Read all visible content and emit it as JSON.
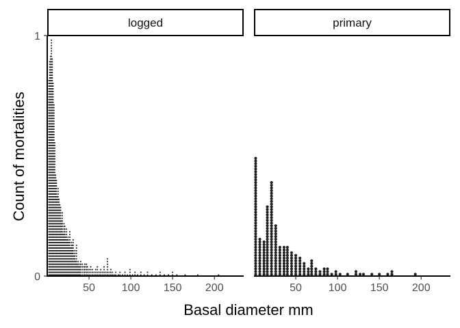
{
  "chart_data": {
    "type": "dotplot",
    "xlabel": "Basal diameter mm",
    "ylabel": "Count of mortalities",
    "xlim": [
      0,
      235
    ],
    "ylim": [
      0,
      1
    ],
    "x_ticks": [
      50,
      100,
      150,
      200
    ],
    "y_ticks": [
      0,
      1
    ],
    "grid": false,
    "legend": "none",
    "panels": [
      {
        "label": "logged",
        "stacks": [
          {
            "x": 2,
            "count": 73
          },
          {
            "x": 3,
            "count": 80
          },
          {
            "x": 4,
            "count": 82
          },
          {
            "x": 5,
            "count": 88
          },
          {
            "x": 6,
            "count": 81
          },
          {
            "x": 7,
            "count": 72
          },
          {
            "x": 8,
            "count": 64
          },
          {
            "x": 9,
            "count": 50
          },
          {
            "x": 10,
            "count": 38
          },
          {
            "x": 11,
            "count": 36
          },
          {
            "x": 12,
            "count": 30
          },
          {
            "x": 13,
            "count": 33
          },
          {
            "x": 14,
            "count": 29
          },
          {
            "x": 15,
            "count": 27
          },
          {
            "x": 16,
            "count": 26
          },
          {
            "x": 17,
            "count": 21
          },
          {
            "x": 18,
            "count": 24
          },
          {
            "x": 19,
            "count": 16
          },
          {
            "x": 20,
            "count": 20
          },
          {
            "x": 21,
            "count": 19
          },
          {
            "x": 22,
            "count": 15
          },
          {
            "x": 23,
            "count": 18
          },
          {
            "x": 24,
            "count": 14
          },
          {
            "x": 25,
            "count": 15
          },
          {
            "x": 26,
            "count": 13
          },
          {
            "x": 27,
            "count": 17
          },
          {
            "x": 28,
            "count": 11
          },
          {
            "x": 29,
            "count": 13
          },
          {
            "x": 30,
            "count": 12
          },
          {
            "x": 31,
            "count": 14
          },
          {
            "x": 32,
            "count": 8
          },
          {
            "x": 33,
            "count": 10
          },
          {
            "x": 34,
            "count": 6
          },
          {
            "x": 35,
            "count": 12
          },
          {
            "x": 36,
            "count": 5
          },
          {
            "x": 37,
            "count": 6
          },
          {
            "x": 38,
            "count": 4
          },
          {
            "x": 39,
            "count": 5
          },
          {
            "x": 40,
            "count": 6
          },
          {
            "x": 42,
            "count": 5
          },
          {
            "x": 44,
            "count": 4
          },
          {
            "x": 45,
            "count": 5
          },
          {
            "x": 47,
            "count": 5
          },
          {
            "x": 48,
            "count": 4
          },
          {
            "x": 50,
            "count": 3
          },
          {
            "x": 52,
            "count": 4
          },
          {
            "x": 54,
            "count": 3
          },
          {
            "x": 56,
            "count": 2
          },
          {
            "x": 58,
            "count": 3
          },
          {
            "x": 60,
            "count": 4
          },
          {
            "x": 62,
            "count": 2
          },
          {
            "x": 64,
            "count": 3
          },
          {
            "x": 66,
            "count": 2
          },
          {
            "x": 68,
            "count": 4
          },
          {
            "x": 70,
            "count": 2
          },
          {
            "x": 72,
            "count": 7
          },
          {
            "x": 74,
            "count": 2
          },
          {
            "x": 76,
            "count": 3
          },
          {
            "x": 78,
            "count": 2
          },
          {
            "x": 80,
            "count": 1
          },
          {
            "x": 82,
            "count": 2
          },
          {
            "x": 85,
            "count": 1
          },
          {
            "x": 87,
            "count": 2
          },
          {
            "x": 90,
            "count": 1
          },
          {
            "x": 93,
            "count": 2
          },
          {
            "x": 96,
            "count": 1
          },
          {
            "x": 99,
            "count": 3
          },
          {
            "x": 102,
            "count": 1
          },
          {
            "x": 105,
            "count": 2
          },
          {
            "x": 108,
            "count": 1
          },
          {
            "x": 112,
            "count": 2
          },
          {
            "x": 116,
            "count": 1
          },
          {
            "x": 120,
            "count": 2
          },
          {
            "x": 125,
            "count": 1
          },
          {
            "x": 130,
            "count": 1
          },
          {
            "x": 135,
            "count": 2
          },
          {
            "x": 140,
            "count": 1
          },
          {
            "x": 145,
            "count": 1
          },
          {
            "x": 150,
            "count": 2
          },
          {
            "x": 155,
            "count": 1
          },
          {
            "x": 165,
            "count": 1
          },
          {
            "x": 180,
            "count": 1
          },
          {
            "x": 205,
            "count": 1
          }
        ]
      },
      {
        "label": "primary",
        "stacks": [
          {
            "x": 2,
            "count": 44
          },
          {
            "x": 7,
            "count": 14
          },
          {
            "x": 12,
            "count": 13
          },
          {
            "x": 16,
            "count": 26
          },
          {
            "x": 21,
            "count": 35
          },
          {
            "x": 26,
            "count": 19
          },
          {
            "x": 31,
            "count": 11
          },
          {
            "x": 36,
            "count": 11
          },
          {
            "x": 40,
            "count": 11
          },
          {
            "x": 45,
            "count": 9
          },
          {
            "x": 50,
            "count": 8
          },
          {
            "x": 55,
            "count": 7
          },
          {
            "x": 60,
            "count": 5
          },
          {
            "x": 65,
            "count": 3
          },
          {
            "x": 69,
            "count": 6
          },
          {
            "x": 74,
            "count": 3
          },
          {
            "x": 79,
            "count": 2
          },
          {
            "x": 84,
            "count": 3
          },
          {
            "x": 88,
            "count": 3
          },
          {
            "x": 93,
            "count": 1
          },
          {
            "x": 98,
            "count": 2
          },
          {
            "x": 103,
            "count": 1
          },
          {
            "x": 112,
            "count": 1
          },
          {
            "x": 122,
            "count": 2
          },
          {
            "x": 127,
            "count": 1
          },
          {
            "x": 131,
            "count": 1
          },
          {
            "x": 141,
            "count": 1
          },
          {
            "x": 150,
            "count": 1
          },
          {
            "x": 160,
            "count": 1
          },
          {
            "x": 165,
            "count": 2
          },
          {
            "x": 193,
            "count": 1
          }
        ]
      }
    ]
  }
}
